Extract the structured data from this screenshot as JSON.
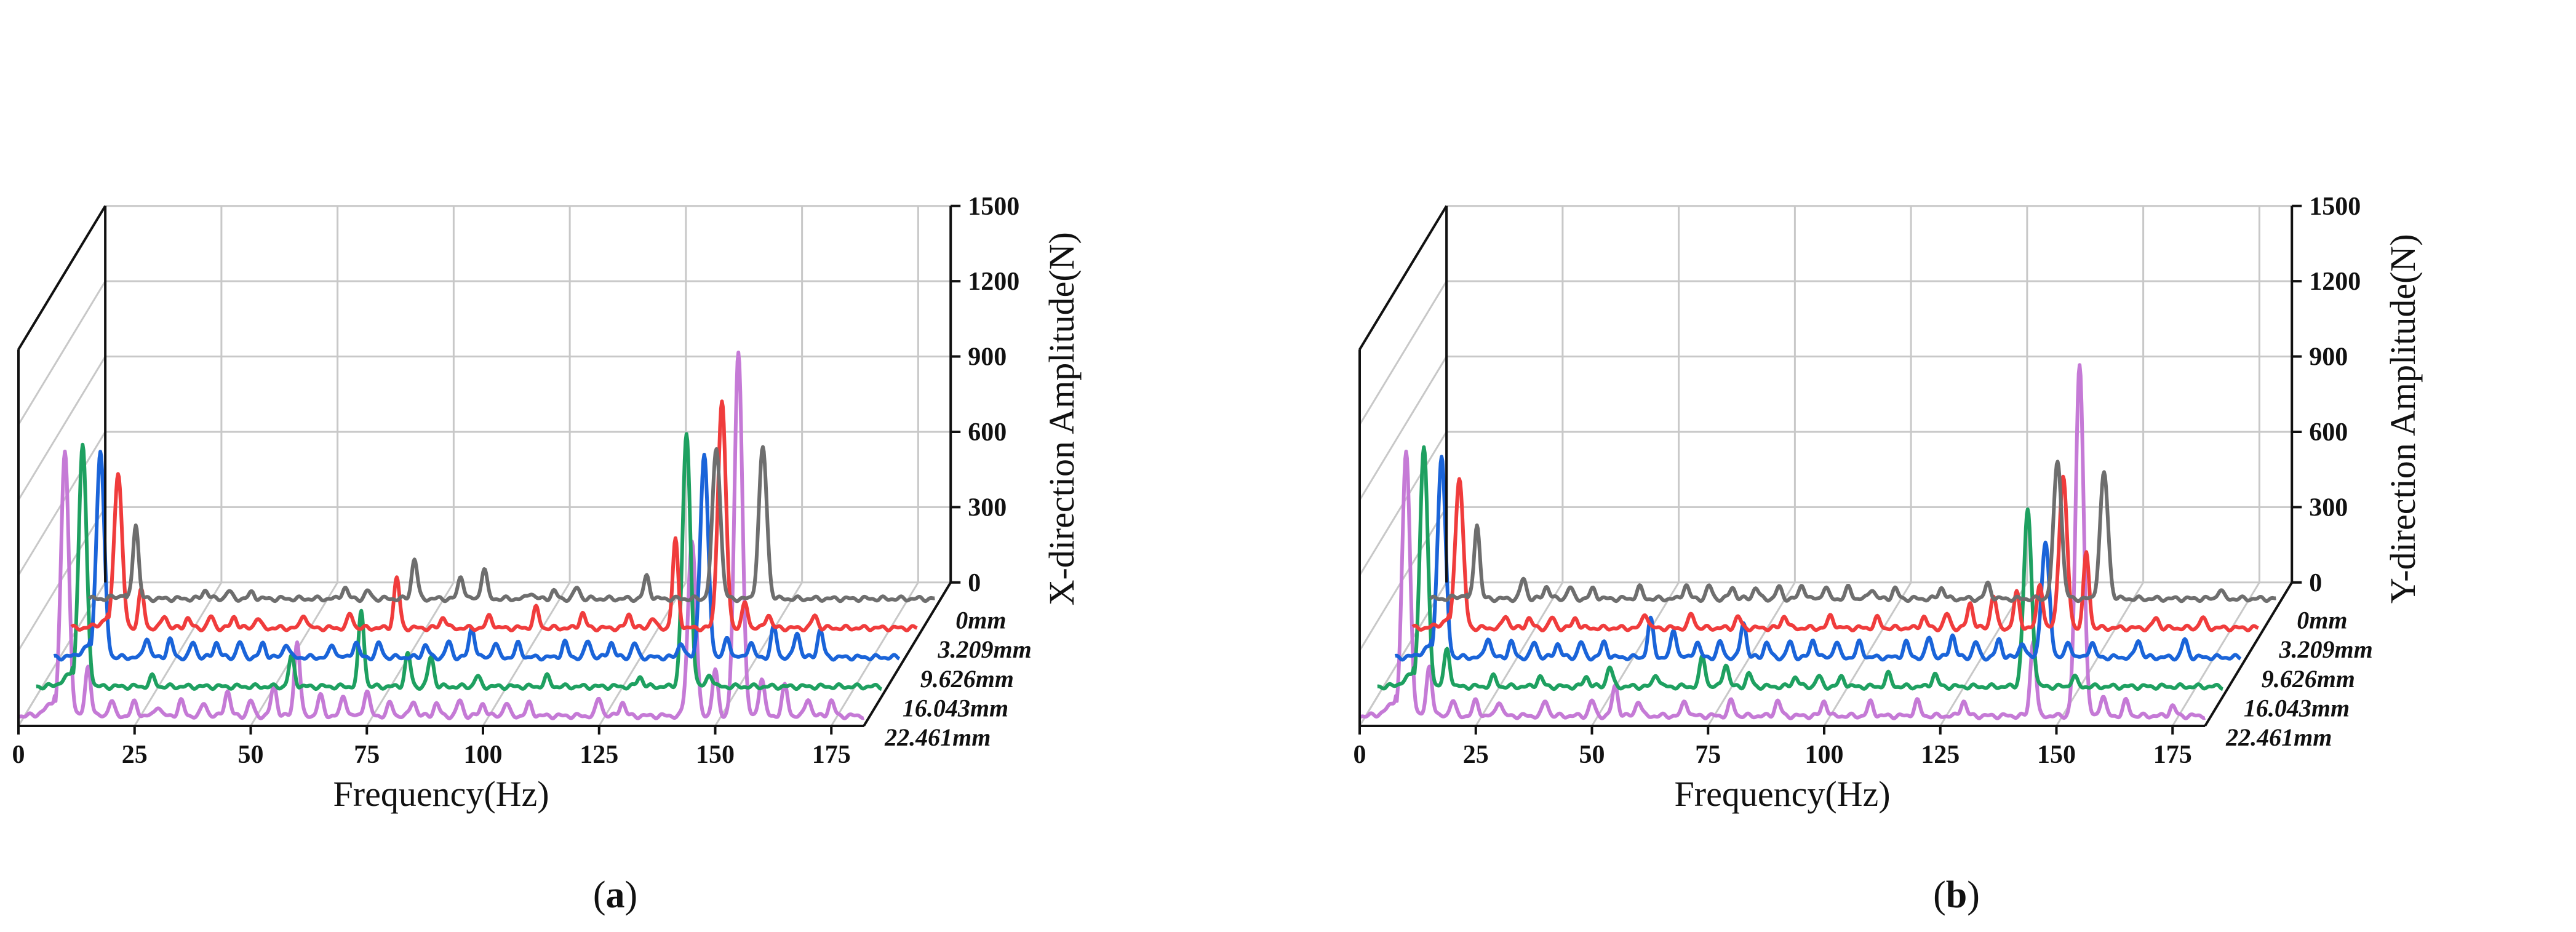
{
  "chart_data": [
    {
      "type": "line",
      "panel_label": "a",
      "title": "",
      "xlabel": "Frequency(Hz)",
      "ylabel": "X-direction Amplitude(N)",
      "xlim": [
        0,
        182
      ],
      "ylim": [
        0,
        1500
      ],
      "x_ticks": [
        0,
        25,
        50,
        75,
        100,
        125,
        150,
        175
      ],
      "y_ticks": [
        0,
        300,
        600,
        900,
        1200,
        1500
      ],
      "series": [
        {
          "name": "0mm",
          "color": "#6e6e6e",
          "baseline": 40,
          "peaks": [
            [
              10,
              300
            ],
            [
              25,
              35
            ],
            [
              30,
              30
            ],
            [
              35,
              25
            ],
            [
              55,
              45
            ],
            [
              60,
              30
            ],
            [
              70,
              160
            ],
            [
              80,
              90
            ],
            [
              85,
              120
            ],
            [
              95,
              25
            ],
            [
              100,
              30
            ],
            [
              105,
              45
            ],
            [
              120,
              90
            ],
            [
              135,
              600
            ],
            [
              145,
              600
            ]
          ]
        },
        {
          "name": "3.209mm",
          "color": "#f03c3c",
          "baseline": 40,
          "peaks": [
            [
              10,
              620
            ],
            [
              15,
              150
            ],
            [
              20,
              50
            ],
            [
              25,
              40
            ],
            [
              30,
              45
            ],
            [
              35,
              45
            ],
            [
              40,
              40
            ],
            [
              50,
              55
            ],
            [
              60,
              55
            ],
            [
              70,
              200
            ],
            [
              80,
              45
            ],
            [
              90,
              50
            ],
            [
              100,
              80
            ],
            [
              110,
              60
            ],
            [
              120,
              55
            ],
            [
              125,
              40
            ],
            [
              130,
              350
            ],
            [
              140,
              900
            ],
            [
              145,
              100
            ],
            [
              150,
              55
            ],
            [
              160,
              50
            ]
          ]
        },
        {
          "name": "9.626mm",
          "color": "#1a64d9",
          "baseline": 40,
          "peaks": [
            [
              10,
              820
            ],
            [
              20,
              80
            ],
            [
              25,
              70
            ],
            [
              30,
              60
            ],
            [
              35,
              60
            ],
            [
              40,
              60
            ],
            [
              45,
              55
            ],
            [
              50,
              55
            ],
            [
              60,
              50
            ],
            [
              65,
              60
            ],
            [
              70,
              55
            ],
            [
              80,
              50
            ],
            [
              85,
              60
            ],
            [
              90,
              120
            ],
            [
              95,
              55
            ],
            [
              100,
              55
            ],
            [
              110,
              60
            ],
            [
              115,
              65
            ],
            [
              120,
              60
            ],
            [
              125,
              55
            ],
            [
              135,
              60
            ],
            [
              140,
              800
            ],
            [
              145,
              80
            ],
            [
              150,
              60
            ],
            [
              155,
              120
            ],
            [
              160,
              100
            ],
            [
              165,
              110
            ]
          ]
        },
        {
          "name": "16.043mm",
          "color": "#1ea060",
          "baseline": 40,
          "peaks": [
            [
              10,
              960
            ],
            [
              25,
              40
            ],
            [
              55,
              120
            ],
            [
              70,
              300
            ],
            [
              80,
              130
            ],
            [
              85,
              120
            ],
            [
              95,
              40
            ],
            [
              110,
              40
            ],
            [
              130,
              40
            ],
            [
              140,
              1000
            ],
            [
              145,
              50
            ]
          ]
        },
        {
          "name": "22.461mm",
          "color": "#c57ad6",
          "baseline": 40,
          "peaks": [
            [
              10,
              1050
            ],
            [
              15,
              200
            ],
            [
              20,
              60
            ],
            [
              25,
              55
            ],
            [
              30,
              40
            ],
            [
              35,
              60
            ],
            [
              40,
              50
            ],
            [
              45,
              100
            ],
            [
              50,
              60
            ],
            [
              55,
              120
            ],
            [
              60,
              300
            ],
            [
              65,
              80
            ],
            [
              70,
              80
            ],
            [
              75,
              100
            ],
            [
              80,
              50
            ],
            [
              85,
              60
            ],
            [
              90,
              50
            ],
            [
              95,
              60
            ],
            [
              100,
              50
            ],
            [
              105,
              50
            ],
            [
              110,
              50
            ],
            [
              125,
              70
            ],
            [
              130,
              55
            ],
            [
              145,
              700
            ],
            [
              150,
              180
            ],
            [
              155,
              1450
            ],
            [
              160,
              150
            ],
            [
              165,
              120
            ],
            [
              170,
              70
            ],
            [
              175,
              60
            ]
          ]
        }
      ]
    },
    {
      "type": "line",
      "panel_label": "b",
      "title": "",
      "xlabel": "Frequency(Hz)",
      "ylabel": "Y-direction Amplitude(N)",
      "xlim": [
        0,
        182
      ],
      "ylim": [
        0,
        1500
      ],
      "x_ticks": [
        0,
        25,
        50,
        75,
        100,
        125,
        150,
        175
      ],
      "y_ticks": [
        0,
        300,
        600,
        900,
        1200,
        1500
      ],
      "series": [
        {
          "name": "0mm",
          "color": "#6e6e6e",
          "baseline": 40,
          "peaks": [
            [
              10,
              300
            ],
            [
              20,
              80
            ],
            [
              25,
              50
            ],
            [
              30,
              45
            ],
            [
              35,
              40
            ],
            [
              45,
              45
            ],
            [
              55,
              55
            ],
            [
              60,
              50
            ],
            [
              65,
              45
            ],
            [
              70,
              45
            ],
            [
              75,
              45
            ],
            [
              80,
              55
            ],
            [
              85,
              45
            ],
            [
              90,
              45
            ],
            [
              95,
              40
            ],
            [
              100,
              40
            ],
            [
              110,
              45
            ],
            [
              120,
              60
            ],
            [
              135,
              550
            ],
            [
              145,
              500
            ],
            [
              170,
              35
            ]
          ]
        },
        {
          "name": "3.209mm",
          "color": "#f03c3c",
          "baseline": 40,
          "peaks": [
            [
              10,
              600
            ],
            [
              20,
              50
            ],
            [
              25,
              40
            ],
            [
              30,
              40
            ],
            [
              35,
              40
            ],
            [
              50,
              60
            ],
            [
              60,
              55
            ],
            [
              70,
              45
            ],
            [
              80,
              50
            ],
            [
              90,
              50
            ],
            [
              100,
              40
            ],
            [
              110,
              45
            ],
            [
              115,
              55
            ],
            [
              120,
              100
            ],
            [
              125,
              130
            ],
            [
              130,
              140
            ],
            [
              135,
              180
            ],
            [
              140,
              600
            ],
            [
              145,
              300
            ],
            [
              160,
              40
            ],
            [
              170,
              40
            ]
          ]
        },
        {
          "name": "9.626mm",
          "color": "#1a64d9",
          "baseline": 40,
          "peaks": [
            [
              10,
              800
            ],
            [
              20,
              80
            ],
            [
              25,
              60
            ],
            [
              30,
              60
            ],
            [
              35,
              55
            ],
            [
              40,
              60
            ],
            [
              45,
              60
            ],
            [
              55,
              150
            ],
            [
              60,
              110
            ],
            [
              65,
              60
            ],
            [
              70,
              60
            ],
            [
              75,
              140
            ],
            [
              80,
              60
            ],
            [
              85,
              60
            ],
            [
              90,
              70
            ],
            [
              95,
              60
            ],
            [
              100,
              60
            ],
            [
              110,
              60
            ],
            [
              115,
              80
            ],
            [
              120,
              90
            ],
            [
              125,
              60
            ],
            [
              130,
              70
            ],
            [
              135,
              60
            ],
            [
              140,
              450
            ],
            [
              145,
              60
            ],
            [
              150,
              60
            ],
            [
              160,
              70
            ],
            [
              170,
              70
            ]
          ]
        },
        {
          "name": "16.043mm",
          "color": "#1ea060",
          "baseline": 40,
          "peaks": [
            [
              10,
              950
            ],
            [
              15,
              150
            ],
            [
              25,
              40
            ],
            [
              35,
              40
            ],
            [
              45,
              40
            ],
            [
              50,
              80
            ],
            [
              60,
              50
            ],
            [
              70,
              120
            ],
            [
              75,
              90
            ],
            [
              80,
              50
            ],
            [
              90,
              40
            ],
            [
              95,
              40
            ],
            [
              100,
              40
            ],
            [
              110,
              50
            ],
            [
              120,
              50
            ],
            [
              140,
              700
            ],
            [
              150,
              40
            ]
          ]
        },
        {
          "name": "22.461mm",
          "color": "#c57ad6",
          "baseline": 40,
          "peaks": [
            [
              10,
              1050
            ],
            [
              15,
              200
            ],
            [
              20,
              60
            ],
            [
              25,
              60
            ],
            [
              30,
              60
            ],
            [
              40,
              60
            ],
            [
              50,
              60
            ],
            [
              55,
              120
            ],
            [
              60,
              60
            ],
            [
              70,
              60
            ],
            [
              80,
              60
            ],
            [
              90,
              60
            ],
            [
              100,
              60
            ],
            [
              110,
              55
            ],
            [
              120,
              60
            ],
            [
              130,
              60
            ],
            [
              145,
              300
            ],
            [
              155,
              1400
            ],
            [
              160,
              80
            ],
            [
              165,
              60
            ],
            [
              175,
              40
            ]
          ]
        }
      ]
    }
  ]
}
